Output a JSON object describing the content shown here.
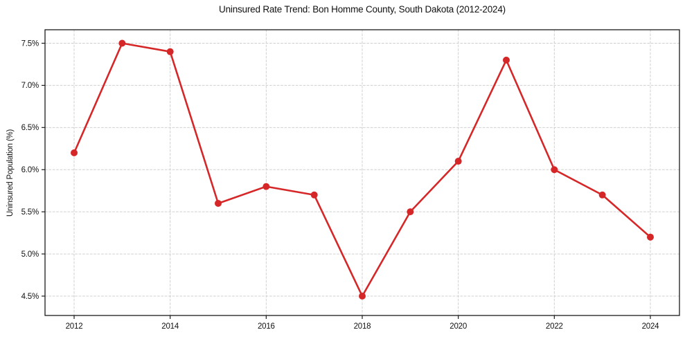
{
  "chart_data": {
    "type": "line",
    "title": "Uninsured Rate Trend: Bon Homme County, South Dakota (2012-2024)",
    "xlabel": "",
    "ylabel": "Uninsured Population (%)",
    "x": [
      2012,
      2013,
      2014,
      2015,
      2016,
      2017,
      2018,
      2019,
      2020,
      2021,
      2022,
      2023,
      2024
    ],
    "values": [
      6.2,
      7.5,
      7.4,
      5.6,
      5.8,
      5.7,
      4.5,
      5.5,
      6.1,
      7.3,
      6.0,
      5.7,
      5.2
    ],
    "x_ticks": [
      2012,
      2014,
      2016,
      2018,
      2020,
      2022,
      2024
    ],
    "x_tick_labels": [
      "2012",
      "2014",
      "2016",
      "2018",
      "2020",
      "2022",
      "2024"
    ],
    "y_ticks": [
      4.5,
      5.0,
      5.5,
      6.0,
      6.5,
      7.0,
      7.5
    ],
    "y_tick_labels": [
      "4.5%",
      "5.0%",
      "5.5%",
      "6.0%",
      "6.5%",
      "7.0%",
      "7.5%"
    ],
    "xlim": [
      2011.394,
      2024.606
    ],
    "ylim": [
      4.27,
      7.66
    ],
    "grid": true,
    "legend": null,
    "line_color": "#d62728",
    "marker_color": "#d62728",
    "grid_color": "#d0d0d0",
    "axis_color": "#1a1a1a",
    "marker": "circle"
  }
}
